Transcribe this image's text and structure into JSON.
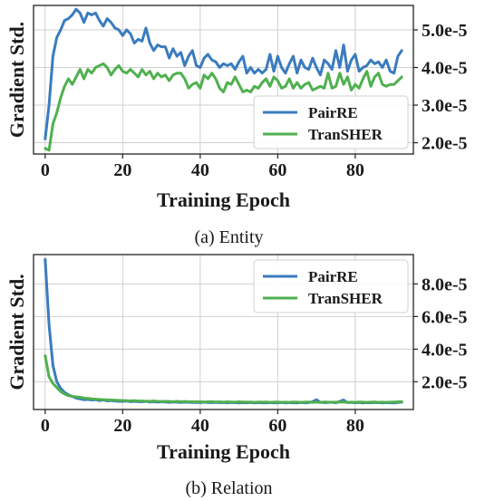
{
  "colors": {
    "PairRE": "#3a7bbf",
    "TranSHER": "#4fb04f"
  },
  "chart_data": [
    {
      "type": "line",
      "caption": "(a) Entity",
      "xlabel": "Training Epoch",
      "ylabel": "Gradient Std.",
      "xlim": [
        -3,
        95
      ],
      "ylim": [
        1.7e-05,
        5.65e-05
      ],
      "xticks": [
        0,
        20,
        40,
        60,
        80
      ],
      "xtick_labels": [
        "0",
        "20",
        "40",
        "60",
        "80"
      ],
      "yticks": [
        2e-05,
        3e-05,
        4e-05,
        5e-05
      ],
      "ytick_labels": [
        "2.0e-5",
        "3.0e-5",
        "4.0e-5",
        "5.0e-5"
      ],
      "grid": true,
      "legend_position": "lower-right",
      "x": [
        0,
        1,
        2,
        3,
        4,
        5,
        6,
        7,
        8,
        9,
        10,
        11,
        12,
        13,
        14,
        15,
        16,
        17,
        18,
        19,
        20,
        21,
        22,
        23,
        24,
        25,
        26,
        27,
        28,
        29,
        30,
        31,
        32,
        33,
        34,
        35,
        36,
        37,
        38,
        39,
        40,
        41,
        42,
        43,
        44,
        45,
        46,
        47,
        48,
        49,
        50,
        51,
        52,
        53,
        54,
        55,
        56,
        57,
        58,
        59,
        60,
        61,
        62,
        63,
        64,
        65,
        66,
        67,
        68,
        69,
        70,
        71,
        72,
        73,
        74,
        75,
        76,
        77,
        78,
        79,
        80,
        81,
        82,
        83,
        84,
        85,
        86,
        87,
        88,
        89,
        90,
        91,
        92
      ],
      "series": [
        {
          "name": "PairRE",
          "values": [
            2.1e-05,
            3e-05,
            4.3e-05,
            4.8e-05,
            5e-05,
            5.25e-05,
            5.3e-05,
            5.4e-05,
            5.55e-05,
            5.45e-05,
            5.2e-05,
            5.45e-05,
            5.4e-05,
            5.45e-05,
            5.25e-05,
            5.1e-05,
            5.3e-05,
            5.2e-05,
            5.05e-05,
            5e-05,
            4.85e-05,
            5e-05,
            4.9e-05,
            4.65e-05,
            4.75e-05,
            4.7e-05,
            5.05e-05,
            4.65e-05,
            4.45e-05,
            4.6e-05,
            4.55e-05,
            4.55e-05,
            4.25e-05,
            4.5e-05,
            4.3e-05,
            4.4e-05,
            4.05e-05,
            4.3e-05,
            4.45e-05,
            4.05e-05,
            4e-05,
            4.25e-05,
            4.35e-05,
            4.2e-05,
            4.15e-05,
            4e-05,
            4.1e-05,
            4.05e-05,
            4.1e-05,
            3.95e-05,
            4.15e-05,
            4.3e-05,
            3.85e-05,
            4e-05,
            3.85e-05,
            3.95e-05,
            3.85e-05,
            3.95e-05,
            4.35e-05,
            3.9e-05,
            4.3e-05,
            4e-05,
            3.85e-05,
            4.1e-05,
            4.3e-05,
            3.85e-05,
            4.2e-05,
            4e-05,
            3.95e-05,
            4.25e-05,
            4e-05,
            3.8e-05,
            4.2e-05,
            4.1e-05,
            3.95e-05,
            4.45e-05,
            4e-05,
            4.6e-05,
            3.9e-05,
            4.2e-05,
            4.35e-05,
            3.9e-05,
            4e-05,
            4.05e-05,
            4.2e-05,
            4.1e-05,
            4.15e-05,
            4e-05,
            4.2e-05,
            3.9e-05,
            3.85e-05,
            4.3e-05,
            4.45e-05
          ]
        },
        {
          "name": "TranSHER",
          "values": [
            1.85e-05,
            1.8e-05,
            2.5e-05,
            2.8e-05,
            3.2e-05,
            3.5e-05,
            3.7e-05,
            3.55e-05,
            3.75e-05,
            3.95e-05,
            3.7e-05,
            3.95e-05,
            3.85e-05,
            4e-05,
            4.05e-05,
            4.1e-05,
            4e-05,
            3.8e-05,
            3.95e-05,
            4.05e-05,
            3.9e-05,
            3.85e-05,
            3.95e-05,
            3.85e-05,
            3.75e-05,
            3.95e-05,
            3.8e-05,
            3.9e-05,
            3.7e-05,
            3.85e-05,
            3.75e-05,
            3.8e-05,
            3.65e-05,
            3.8e-05,
            3.85e-05,
            3.85e-05,
            3.7e-05,
            3.45e-05,
            3.55e-05,
            3.6e-05,
            3.45e-05,
            3.8e-05,
            3.7e-05,
            3.85e-05,
            3.7e-05,
            3.45e-05,
            3.35e-05,
            3.6e-05,
            3.55e-05,
            3.75e-05,
            3.55e-05,
            3.35e-05,
            3.4e-05,
            3.35e-05,
            3.5e-05,
            3.45e-05,
            3.6e-05,
            3.7e-05,
            3.5e-05,
            3.75e-05,
            3.65e-05,
            3.45e-05,
            3.5e-05,
            3.7e-05,
            3.45e-05,
            3.6e-05,
            3.45e-05,
            3.55e-05,
            3.6e-05,
            3.4e-05,
            3.45e-05,
            3.5e-05,
            3.45e-05,
            3.85e-05,
            3.45e-05,
            3.5e-05,
            3.85e-05,
            3.55e-05,
            3.75e-05,
            3.4e-05,
            3.55e-05,
            3.45e-05,
            3.7e-05,
            3.9e-05,
            3.5e-05,
            3.75e-05,
            3.85e-05,
            3.55e-05,
            3.5e-05,
            3.55e-05,
            3.55e-05,
            3.65e-05,
            3.75e-05
          ]
        }
      ]
    },
    {
      "type": "line",
      "caption": "(b) Relation",
      "xlabel": "Training Epoch",
      "ylabel": "Gradient Std.",
      "xlim": [
        -3,
        95
      ],
      "ylim": [
        3e-06,
        9.8e-05
      ],
      "xticks": [
        0,
        20,
        40,
        60,
        80
      ],
      "xtick_labels": [
        "0",
        "20",
        "40",
        "60",
        "80"
      ],
      "yticks": [
        2e-05,
        4e-05,
        6e-05,
        8e-05
      ],
      "ytick_labels": [
        "2.0e-5",
        "4.0e-5",
        "6.0e-5",
        "8.0e-5"
      ],
      "grid": true,
      "legend_position": "top-right",
      "x": [
        0,
        1,
        2,
        3,
        4,
        5,
        6,
        7,
        8,
        9,
        10,
        11,
        12,
        13,
        14,
        15,
        16,
        17,
        18,
        19,
        20,
        21,
        22,
        23,
        24,
        25,
        26,
        27,
        28,
        29,
        30,
        31,
        32,
        33,
        34,
        35,
        36,
        37,
        38,
        39,
        40,
        41,
        42,
        43,
        44,
        45,
        46,
        47,
        48,
        49,
        50,
        51,
        52,
        53,
        54,
        55,
        56,
        57,
        58,
        59,
        60,
        61,
        62,
        63,
        64,
        65,
        66,
        67,
        68,
        69,
        70,
        71,
        72,
        73,
        74,
        75,
        76,
        77,
        78,
        79,
        80,
        81,
        82,
        83,
        84,
        85,
        86,
        87,
        88,
        89,
        90,
        91,
        92
      ],
      "series": [
        {
          "name": "PairRE",
          "values": [
            9.5e-05,
            5.5e-05,
            3e-05,
            2e-05,
            1.6e-05,
            1.35e-05,
            1.2e-05,
            1.1e-05,
            1e-05,
            9.5e-06,
            9e-06,
            9.2e-06,
            8.8e-06,
            9e-06,
            8.5e-06,
            8.8e-06,
            8.3e-06,
            8.5e-06,
            8.2e-06,
            8e-06,
            8e-06,
            8.2e-06,
            7.8e-06,
            8e-06,
            7.8e-06,
            7.7e-06,
            8e-06,
            7.6e-06,
            7.8e-06,
            7.5e-06,
            7.7e-06,
            7.6e-06,
            7.4e-06,
            7.6e-06,
            7.5e-06,
            7.3e-06,
            7.5e-06,
            7.4e-06,
            7.3e-06,
            7.4e-06,
            7.2e-06,
            7.5e-06,
            7.3e-06,
            7.2e-06,
            7.4e-06,
            7.2e-06,
            7.3e-06,
            7.1e-06,
            7.3e-06,
            7.2e-06,
            7e-06,
            7.2e-06,
            7.1e-06,
            7.3e-06,
            7e-06,
            7.2e-06,
            7.1e-06,
            7e-06,
            7.2e-06,
            7e-06,
            7.1e-06,
            7.3e-06,
            7e-06,
            7.2e-06,
            7.1e-06,
            7e-06,
            7.3e-06,
            7.1e-06,
            7.2e-06,
            7.8e-06,
            9e-06,
            7.4e-06,
            7.2e-06,
            7.3e-06,
            7.5e-06,
            7.1e-06,
            8e-06,
            8.8e-06,
            7.2e-06,
            7.4e-06,
            7.1e-06,
            7.3e-06,
            7e-06,
            7.2e-06,
            7.1e-06,
            7.3e-06,
            7.2e-06,
            7e-06,
            7.2e-06,
            7.1e-06,
            7e-06,
            7.3e-06,
            7.5e-06
          ]
        },
        {
          "name": "TranSHER",
          "values": [
            3.6e-05,
            2.3e-05,
            1.9e-05,
            1.65e-05,
            1.4e-05,
            1.25e-05,
            1.15e-05,
            1.1e-05,
            1.08e-05,
            1.05e-05,
            1e-05,
            9.8e-06,
            9.5e-06,
            9.3e-06,
            9.2e-06,
            9e-06,
            9e-06,
            8.8e-06,
            8.7e-06,
            8.6e-06,
            8.5e-06,
            8.4e-06,
            8.3e-06,
            8.4e-06,
            8.2e-06,
            8.2e-06,
            8.1e-06,
            8e-06,
            8.2e-06,
            8e-06,
            7.9e-06,
            8e-06,
            7.9e-06,
            7.8e-06,
            8e-06,
            7.8e-06,
            7.9e-06,
            7.7e-06,
            7.8e-06,
            7.7e-06,
            7.8e-06,
            7.6e-06,
            7.7e-06,
            7.8e-06,
            7.6e-06,
            7.7e-06,
            7.5e-06,
            7.7e-06,
            7.6e-06,
            7.5e-06,
            7.7e-06,
            7.6e-06,
            7.5e-06,
            7.6e-06,
            7.4e-06,
            7.6e-06,
            7.5e-06,
            7.6e-06,
            7.4e-06,
            7.5e-06,
            7.6e-06,
            7.4e-06,
            7.5e-06,
            7.4e-06,
            7.6e-06,
            7.5e-06,
            7.4e-06,
            7.5e-06,
            7.6e-06,
            7.4e-06,
            7.5e-06,
            7.4e-06,
            7.6e-06,
            7.5e-06,
            7.4e-06,
            7.5e-06,
            7.6e-06,
            7.5e-06,
            7.4e-06,
            7.5e-06,
            7.4e-06,
            7.6e-06,
            7.5e-06,
            7.4e-06,
            7.5e-06,
            7.6e-06,
            7.4e-06,
            7.5e-06,
            7.4e-06,
            7.5e-06,
            7.6e-06,
            7.7e-06,
            7.8e-06
          ]
        }
      ]
    }
  ]
}
